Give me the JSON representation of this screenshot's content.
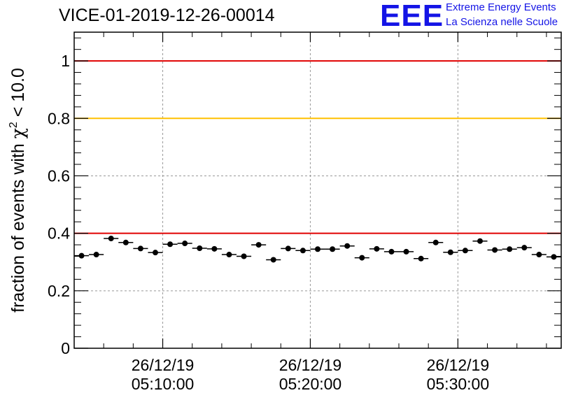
{
  "header": {
    "run_title": "VICE-01-2019-12-26-00014",
    "logo_text": "EEE",
    "logo_line1": "Extreme Energy Events",
    "logo_line2": "La Scienza nelle Scuole"
  },
  "chart_data": {
    "type": "scatter",
    "title": "VICE-01-2019-12-26-00014",
    "xlabel": "",
    "ylabel_prefix": "fraction of events with ",
    "ylabel_symbol": "χ",
    "ylabel_exp": "2",
    "ylabel_suffix": " < 10.0",
    "xlim_minutes": [
      0,
      33
    ],
    "ylim": [
      0,
      1.1
    ],
    "yticks": [
      0,
      0.2,
      0.4,
      0.6,
      0.8,
      1
    ],
    "ytick_labels": [
      "0",
      "0.2",
      "0.4",
      "0.6",
      "0.8",
      "1"
    ],
    "xticks_minutes": [
      6,
      16,
      26
    ],
    "xtick_dates": [
      "26/12/19",
      "26/12/19",
      "26/12/19"
    ],
    "xtick_times": [
      "05:10:00",
      "05:20:00",
      "05:30:00"
    ],
    "x_origin_time": "05:04:00",
    "grid": true,
    "thresholds": [
      {
        "value": 1.0,
        "color": "#e00000"
      },
      {
        "value": 0.8,
        "color": "#ffc000"
      },
      {
        "value": 0.4,
        "color": "#e00000"
      }
    ],
    "bin_width_minutes": 1,
    "series": [
      {
        "name": "fraction",
        "color": "#000000",
        "values": [
          0.322,
          0.326,
          0.382,
          0.368,
          0.347,
          0.333,
          0.362,
          0.365,
          0.348,
          0.346,
          0.326,
          0.32,
          0.36,
          0.308,
          0.347,
          0.34,
          0.345,
          0.345,
          0.356,
          0.315,
          0.346,
          0.336,
          0.336,
          0.312,
          0.368,
          0.334,
          0.34,
          0.373,
          0.342,
          0.345,
          0.35,
          0.326,
          0.318
        ],
        "errors": [
          0.008,
          0.008,
          0.008,
          0.008,
          0.008,
          0.008,
          0.008,
          0.008,
          0.008,
          0.008,
          0.008,
          0.008,
          0.008,
          0.008,
          0.008,
          0.008,
          0.008,
          0.008,
          0.008,
          0.008,
          0.008,
          0.008,
          0.008,
          0.008,
          0.008,
          0.008,
          0.008,
          0.008,
          0.008,
          0.008,
          0.008,
          0.008,
          0.008
        ]
      }
    ]
  }
}
